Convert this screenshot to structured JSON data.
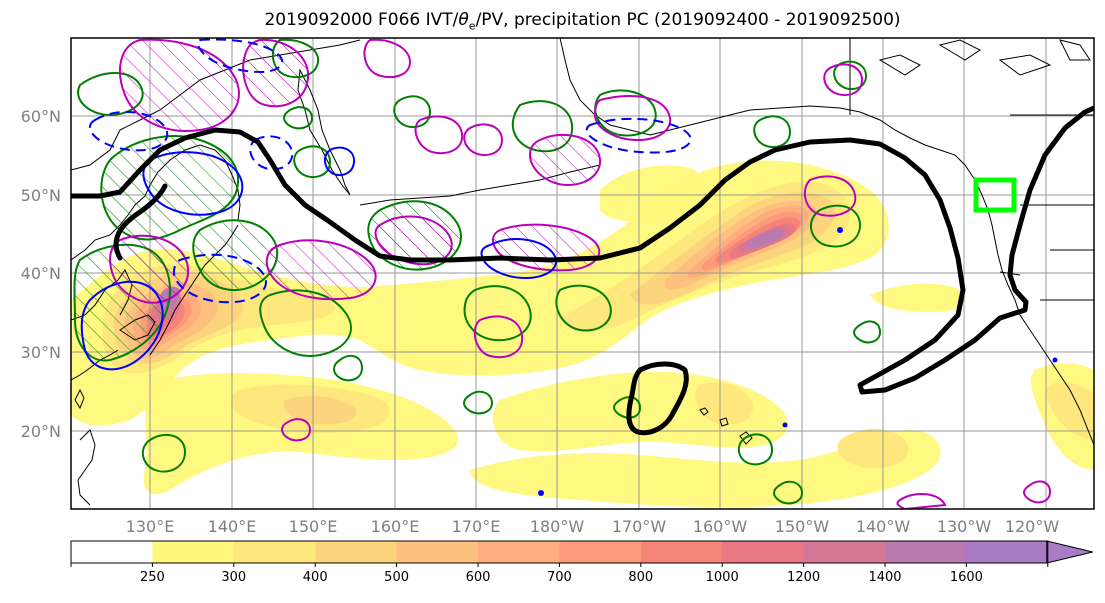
{
  "title_prefix": "2019092000 F066 IVT/",
  "title_theta": "θ",
  "title_sub": "e",
  "title_suffix": "/PV, precipitation PC (2019092400 - 2019092500)",
  "lat_labels": [
    "60°N",
    "50°N",
    "40°N",
    "30°N",
    "20°N"
  ],
  "lon_labels": [
    "130°E",
    "140°E",
    "150°E",
    "160°E",
    "170°E",
    "180°W",
    "170°W",
    "160°W",
    "150°W",
    "140°W",
    "130°W",
    "120°W"
  ],
  "colorbar": {
    "ticks": [
      "250",
      "300",
      "400",
      "500",
      "600",
      "700",
      "800",
      "1000",
      "1200",
      "1400",
      "1600"
    ],
    "colors": [
      "#ffffff",
      "#fff87a",
      "#fee77d",
      "#fdd47e",
      "#fdc07e",
      "#fdae7c",
      "#fc9a7a",
      "#f68579",
      "#e77884",
      "#d47896",
      "#bb7aaf",
      "#a77bc6"
    ]
  },
  "legend_colors": {
    "ivt_contour": "#000000",
    "theta_e": "#008000",
    "pv_positive": "#bb00bb",
    "pv_negative": "#0000ff",
    "target_box": "#00ff00",
    "coastline": "#000000"
  }
}
